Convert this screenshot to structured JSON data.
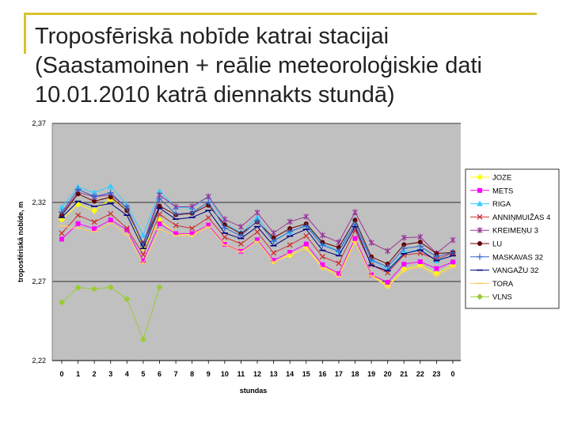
{
  "slide": {
    "title": "Troposfēriskā nobīde katrai stacijai\n(Saastamoinen + reālie meteoroloģiskie dati\n10.01.2010 katrā diennakts stundā)",
    "accent_color": "#d8c32c"
  },
  "chart_data": {
    "type": "line",
    "title": "",
    "xlabel": "stundas",
    "ylabel": "troposfēriskā nobīde, m",
    "ylim": [
      2.22,
      2.37
    ],
    "yticks": [
      "2,22",
      "2,27",
      "2,32",
      "2,37"
    ],
    "categories": [
      "0",
      "1",
      "2",
      "3",
      "4",
      "5",
      "6",
      "7",
      "8",
      "9",
      "10",
      "11",
      "12",
      "13",
      "14",
      "15",
      "16",
      "17",
      "18",
      "19",
      "20",
      "21",
      "22",
      "23",
      "0"
    ],
    "grid": "horizontal",
    "legend_position": "right",
    "plot_background": "#c0c0c0",
    "series": [
      {
        "name": "JOZE",
        "color": "#ffff00",
        "marker": "diamond",
        "values": [
          2.3092,
          2.3188,
          2.3147,
          2.3222,
          2.3157,
          2.2911,
          2.3088,
          2.3002,
          2.2997,
          2.3057,
          2.2938,
          2.2893,
          2.2962,
          2.2826,
          2.2866,
          2.2913,
          2.2792,
          2.2747,
          2.2954,
          2.2742,
          2.2672,
          2.2776,
          2.2803,
          2.2748,
          2.2804
        ]
      },
      {
        "name": "METS",
        "color": "#ff00ff",
        "marker": "square",
        "values": [
          2.2968,
          2.3066,
          2.3034,
          2.3089,
          2.3027,
          2.2831,
          2.3065,
          2.3003,
          2.3003,
          2.3057,
          2.2935,
          2.2891,
          2.2964,
          2.2834,
          2.2884,
          2.2937,
          2.2806,
          2.275,
          2.2972,
          2.2742,
          2.2695,
          2.281,
          2.2825,
          2.2782,
          2.2823
        ]
      },
      {
        "name": "RIGA",
        "color": "#33ccff",
        "marker": "triangle",
        "values": [
          2.317,
          2.3297,
          2.3262,
          2.3302,
          2.3185,
          2.2992,
          2.327,
          2.3169,
          2.3165,
          2.3237,
          2.3068,
          2.3009,
          2.3105,
          2.2963,
          2.3013,
          2.3058,
          2.2941,
          2.2893,
          2.3093,
          2.2837,
          2.2774,
          2.2886,
          2.2903,
          2.2831,
          2.2889
        ]
      },
      {
        "name": "ANNIŅMUIŽAS 4",
        "color": "#cc3333",
        "marker": "x",
        "values": [
          2.3005,
          2.3119,
          2.3076,
          2.3129,
          2.3037,
          2.287,
          2.3126,
          2.3055,
          2.3036,
          2.3104,
          2.298,
          2.2938,
          2.3013,
          2.2881,
          2.2931,
          2.2988,
          2.2857,
          2.2815,
          2.3024,
          2.2805,
          2.2755,
          2.2867,
          2.288,
          2.284,
          2.2881
        ]
      },
      {
        "name": "KREIMEŅU 3",
        "color": "#993399",
        "marker": "star",
        "values": [
          2.3128,
          2.3264,
          2.3236,
          2.3249,
          2.3167,
          2.2938,
          2.3247,
          2.3172,
          2.3174,
          2.3237,
          2.3093,
          2.3046,
          2.3136,
          2.3007,
          2.3078,
          2.311,
          2.2992,
          2.2948,
          2.3138,
          2.2945,
          2.2893,
          2.2977,
          2.2982,
          2.2878,
          2.2962
        ]
      },
      {
        "name": "LU",
        "color": "#660000",
        "marker": "circle",
        "values": [
          2.3119,
          2.3254,
          2.3207,
          2.3234,
          2.3149,
          2.2937,
          2.3177,
          2.3121,
          2.3131,
          2.3182,
          2.3059,
          2.3003,
          2.3077,
          2.2977,
          2.3035,
          2.3065,
          2.2948,
          2.2915,
          2.3088,
          2.2856,
          2.2811,
          2.2933,
          2.2949,
          2.2877,
          2.2884
        ]
      },
      {
        "name": "MASKAVAS 32",
        "color": "#3366cc",
        "marker": "plus",
        "values": [
          2.3138,
          2.3283,
          2.3237,
          2.3261,
          2.3164,
          2.2927,
          2.3224,
          2.3127,
          2.3135,
          2.3202,
          2.3038,
          2.299,
          2.3084,
          2.2955,
          2.3017,
          2.3052,
          2.2929,
          2.2892,
          2.3062,
          2.2837,
          2.2793,
          2.291,
          2.2923,
          2.2857,
          2.2883
        ]
      },
      {
        "name": "VANGAŽU 32",
        "color": "#000080",
        "marker": "dash",
        "values": [
          2.3105,
          2.3207,
          2.3175,
          2.3193,
          2.3119,
          2.2909,
          2.3164,
          2.3094,
          2.3105,
          2.3149,
          2.3006,
          2.2972,
          2.3047,
          2.2926,
          2.2987,
          2.303,
          2.2897,
          2.2863,
          2.3047,
          2.2803,
          2.2768,
          2.2876,
          2.2899,
          2.2832,
          2.2863
        ]
      },
      {
        "name": "TORA",
        "color": "#ffcc66",
        "marker": "dash",
        "values": [
          2.3052,
          2.3037,
          2.3015,
          2.3068,
          2.2997,
          2.2813,
          2.3029,
          2.299,
          2.299,
          2.3045,
          2.293,
          2.2887,
          2.2953,
          2.2823,
          2.2873,
          2.2908,
          2.2785,
          2.273,
          2.295,
          2.2735,
          2.2665,
          2.277,
          2.2792,
          2.2738,
          2.279
        ]
      },
      {
        "name": "VLNS",
        "color": "#99cc33",
        "marker": "diamond",
        "values": [
          2.2568,
          2.2661,
          2.2653,
          2.2664,
          2.2589,
          2.2334,
          2.2664,
          null,
          null,
          null,
          null,
          null,
          null,
          null,
          null,
          null,
          null,
          null,
          null,
          null,
          null,
          null,
          null,
          null,
          null
        ]
      }
    ]
  }
}
